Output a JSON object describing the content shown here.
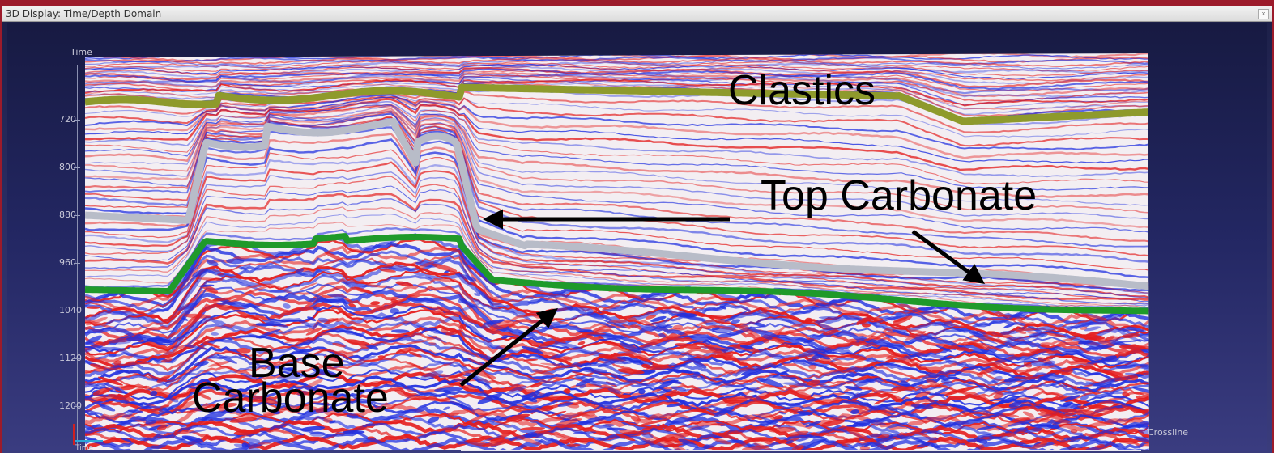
{
  "window": {
    "title": "3D Display: Time/Depth Domain",
    "close_glyph": "×"
  },
  "axis": {
    "title": "Time",
    "ticks": [
      "720",
      "800",
      "880",
      "960",
      "1040",
      "1120",
      "1200"
    ],
    "crossline_label": "Crossline",
    "bottom_label": "Time"
  },
  "annotations": {
    "clastics": "Clastics",
    "top_carbonate": "Top Carbonate",
    "base_line1": "Base",
    "base_line2": "Carbonate"
  },
  "colors": {
    "clastics_horizon": "#8e9a2c",
    "top_carbonate_horizon": "#b8bcc8",
    "base_carbonate_horizon": "#1f9a2a",
    "positive_amplitude": "#e41d1d",
    "negative_amplitude": "#1f2fe0"
  },
  "icons": [
    "close-icon",
    "axis-gizmo-icon",
    "arrow-icon"
  ]
}
